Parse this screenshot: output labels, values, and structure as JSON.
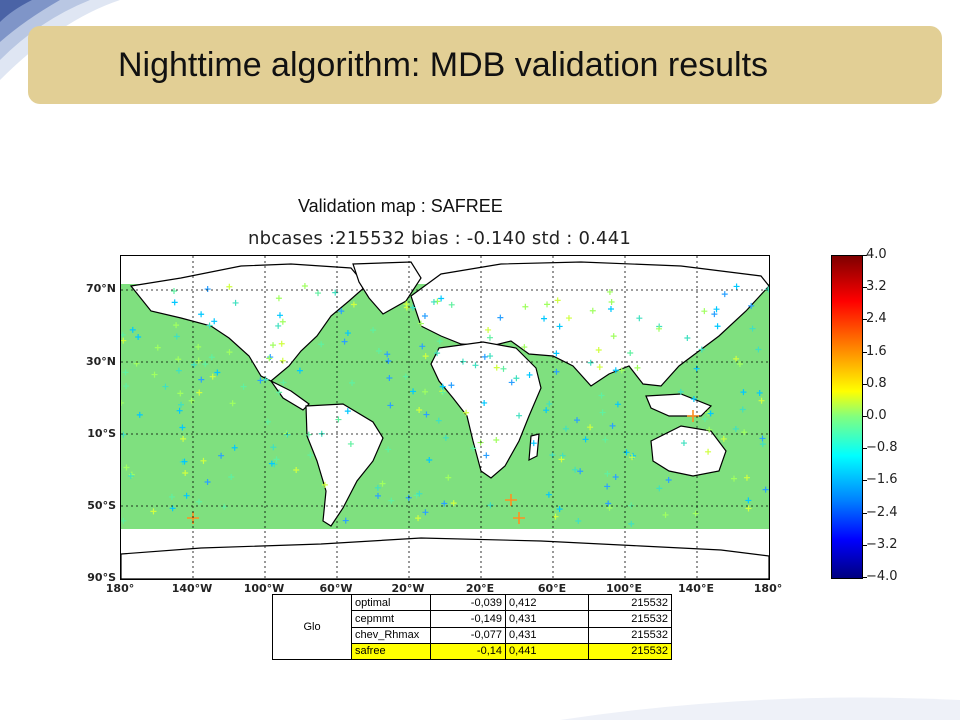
{
  "slide": {
    "title": "Nighttime algorithm: MDB validation results",
    "subtitle": "Validation map : SAFREE",
    "accent_color": "#e2cf95"
  },
  "map": {
    "title": "nbcases :215532 bias : -0.140 std : 0.441",
    "lat_labels": [
      "70°N",
      "30°N",
      "10°S",
      "50°S",
      "90°S"
    ],
    "lon_labels": [
      "180°",
      "140°W",
      "100°W",
      "60°W",
      "20°W",
      "20°E",
      "60°E",
      "100°E",
      "140°E",
      "180°"
    ],
    "colorbar_ticks": [
      "4.0",
      "3.2",
      "2.4",
      "1.6",
      "0.8",
      "0.0",
      "−0.8",
      "−1.6",
      "−2.4",
      "−3.2",
      "−4.0"
    ],
    "colorbar_range": [
      -4.0,
      4.0
    ]
  },
  "table": {
    "region": "Glo",
    "rows": [
      {
        "name": "optimal",
        "bias": "-0,039",
        "std": "0,412",
        "n": "215532",
        "highlight": false
      },
      {
        "name": "cepmmt",
        "bias": "-0,149",
        "std": "0,431",
        "n": "215532",
        "highlight": false
      },
      {
        "name": "chev_Rhmax",
        "bias": "-0,077",
        "std": "0,431",
        "n": "215532",
        "highlight": false
      },
      {
        "name": "safree",
        "bias": "-0,14",
        "std": "0,441",
        "n": "215532",
        "highlight": true
      }
    ]
  }
}
